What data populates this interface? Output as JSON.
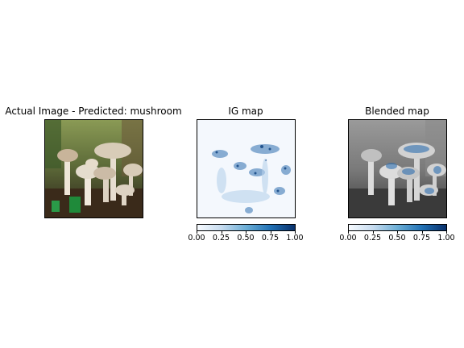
{
  "panels": [
    {
      "title": "Actual Image - Predicted: mushroom"
    },
    {
      "title": "IG map"
    },
    {
      "title": "Blended map"
    }
  ],
  "chart_data": {
    "type": "heatmap",
    "colormap": "Blues",
    "colorbar": {
      "range": [
        0.0,
        1.0
      ],
      "ticks": [
        "0.00",
        "0.25",
        "0.50",
        "0.75",
        "1.00"
      ]
    },
    "predicted_label": "mushroom"
  }
}
